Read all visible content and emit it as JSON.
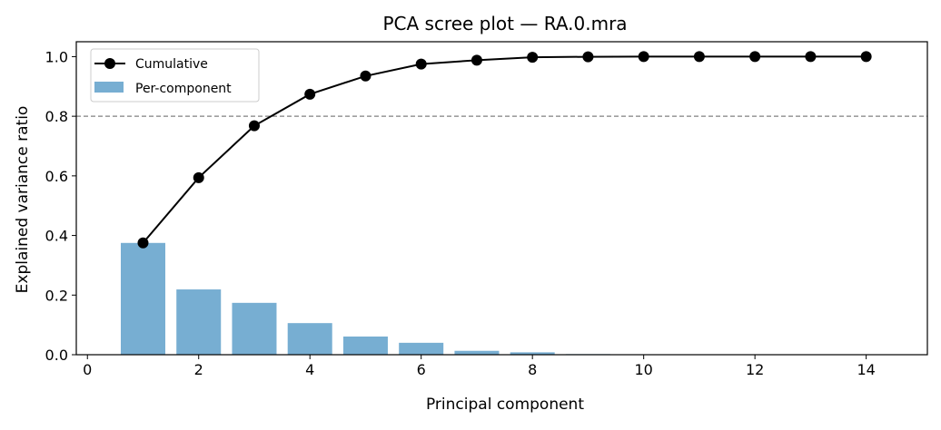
{
  "chart_data": {
    "type": "bar+line",
    "title": "PCA scree plot — RA.0.mra",
    "xlabel": "Principal component",
    "ylabel": "Explained variance ratio",
    "xlim": [
      -0.2,
      15.1
    ],
    "ylim": [
      0,
      1.05
    ],
    "xticks": [
      0,
      2,
      4,
      6,
      8,
      10,
      12,
      14
    ],
    "yticks": [
      0.0,
      0.2,
      0.4,
      0.6,
      0.8,
      1.0
    ],
    "x": [
      1,
      2,
      3,
      4,
      5,
      6,
      7,
      8,
      9,
      10,
      11,
      12,
      13,
      14
    ],
    "series": [
      {
        "name": "Per-component",
        "type": "bar",
        "color": "#77aed2",
        "values": [
          0.375,
          0.219,
          0.174,
          0.106,
          0.061,
          0.04,
          0.013,
          0.008,
          0.002,
          0.0005,
          0.0002,
          0.0001,
          0.0,
          0.0
        ]
      },
      {
        "name": "Cumulative",
        "type": "line",
        "color": "#000000",
        "marker": "circle",
        "values": [
          0.375,
          0.594,
          0.768,
          0.874,
          0.935,
          0.975,
          0.988,
          0.998,
          0.9995,
          1.0,
          1.0,
          1.0,
          1.0,
          1.0
        ]
      }
    ],
    "reference_line": {
      "y": 0.8,
      "style": "dashed",
      "color": "#808080"
    },
    "legend": {
      "position": "top-left",
      "entries": [
        "Cumulative",
        "Per-component"
      ]
    },
    "grid": false
  }
}
